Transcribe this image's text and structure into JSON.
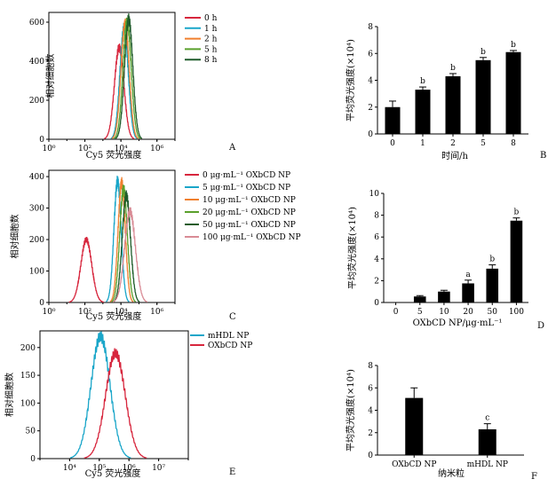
{
  "chart_data": [
    {
      "panel": "A",
      "type": "line",
      "xlabel": "Cy5 荧光强度",
      "ylabel": "相对细胞数",
      "x_scale": "log",
      "xlim": [
        1,
        10000000
      ],
      "ylim": [
        0,
        650
      ],
      "x_ticks": [
        1,
        100,
        10000,
        1000000
      ],
      "y_ticks": [
        0,
        200,
        400,
        600
      ],
      "legend_position": "right",
      "series": [
        {
          "name": "0 h",
          "color": "#d7263d",
          "peak_x": 8000,
          "peak_y": 470,
          "width": 0.26
        },
        {
          "name": "1 h",
          "color": "#1aa6c9",
          "peak_x": 15000,
          "peak_y": 570,
          "width": 0.23
        },
        {
          "name": "2 h",
          "color": "#f07f2e",
          "peak_x": 17000,
          "peak_y": 590,
          "width": 0.23
        },
        {
          "name": "5 h",
          "color": "#5aa02c",
          "peak_x": 22000,
          "peak_y": 600,
          "width": 0.23
        },
        {
          "name": "8 h",
          "color": "#1f5c2b",
          "peak_x": 27000,
          "peak_y": 615,
          "width": 0.23
        }
      ]
    },
    {
      "panel": "B",
      "type": "bar",
      "xlabel": "时间/h",
      "ylabel": "平均荧光强度(×10⁴)",
      "categories": [
        "0",
        "1",
        "2",
        "5",
        "8"
      ],
      "values": [
        2.0,
        3.3,
        4.3,
        5.5,
        6.1
      ],
      "errors": [
        0.45,
        0.2,
        0.2,
        0.2,
        0.12
      ],
      "significance": [
        "",
        "b",
        "b",
        "b",
        "b"
      ],
      "ylim": [
        0,
        8
      ],
      "y_ticks": [
        0,
        2,
        4,
        6,
        8
      ]
    },
    {
      "panel": "C",
      "type": "line",
      "xlabel": "Cy5 荧光强度",
      "ylabel": "相对细胞数",
      "x_scale": "log",
      "xlim": [
        1,
        10000000
      ],
      "ylim": [
        0,
        420
      ],
      "x_ticks": [
        1,
        100,
        10000,
        1000000
      ],
      "y_ticks": [
        0,
        100,
        200,
        300,
        400
      ],
      "legend_position": "right",
      "series": [
        {
          "name": "0 μg·mL⁻¹  OXbCD NP",
          "color": "#d7263d",
          "peak_x": 120,
          "peak_y": 200,
          "width": 0.3
        },
        {
          "name": "5 μg·mL⁻¹  OXbCD NP",
          "color": "#1aa6c9",
          "peak_x": 6500,
          "peak_y": 385,
          "width": 0.2
        },
        {
          "name": "10 μg·mL⁻¹  OXbCD NP",
          "color": "#f07f2e",
          "peak_x": 11000,
          "peak_y": 380,
          "width": 0.2
        },
        {
          "name": "20 μg·mL⁻¹  OXbCD NP",
          "color": "#5aa02c",
          "peak_x": 14000,
          "peak_y": 360,
          "width": 0.21
        },
        {
          "name": "50 μg·mL⁻¹  OXbCD NP",
          "color": "#1f5c2b",
          "peak_x": 20000,
          "peak_y": 340,
          "width": 0.23
        },
        {
          "name": "100 μg·mL⁻¹  OXbCD NP",
          "color": "#d98b95",
          "peak_x": 32000,
          "peak_y": 290,
          "width": 0.3
        }
      ]
    },
    {
      "panel": "D",
      "type": "bar",
      "xlabel": "OXbCD NP/μg·mL⁻¹",
      "ylabel": "平均荧光强度(×10⁴)",
      "categories": [
        "0",
        "5",
        "10",
        "20",
        "50",
        "100"
      ],
      "values": [
        0,
        0.55,
        1.0,
        1.75,
        3.1,
        7.5
      ],
      "errors": [
        0,
        0.08,
        0.12,
        0.3,
        0.35,
        0.25
      ],
      "significance": [
        "",
        "",
        "",
        "a",
        "b",
        "b"
      ],
      "ylim": [
        0,
        10
      ],
      "y_ticks": [
        0,
        2,
        4,
        6,
        8,
        10
      ]
    },
    {
      "panel": "E",
      "type": "line",
      "xlabel": "Cy5 荧光强度",
      "ylabel": "相对细胞数",
      "x_scale": "log",
      "xlim": [
        1000,
        100000000
      ],
      "ylim": [
        0,
        230
      ],
      "x_ticks": [
        10000,
        100000,
        1000000,
        10000000
      ],
      "y_ticks": [
        0,
        50,
        100,
        150,
        200
      ],
      "legend_position": "top-right",
      "series": [
        {
          "name": "mHDL NP",
          "color": "#1aa6c9",
          "peak_x": 110000,
          "peak_y": 220,
          "width": 0.32
        },
        {
          "name": "OXbCD NP",
          "color": "#d7263d",
          "peak_x": 350000,
          "peak_y": 190,
          "width": 0.33
        }
      ]
    },
    {
      "panel": "F",
      "type": "bar",
      "xlabel": "纳米粒",
      "ylabel": "平均荧光强度(×10⁴)",
      "categories": [
        "OXbCD NP",
        "mHDL NP"
      ],
      "values": [
        5.1,
        2.3
      ],
      "errors": [
        0.9,
        0.5
      ],
      "significance": [
        "",
        "c"
      ],
      "ylim": [
        0,
        8
      ],
      "y_ticks": [
        0,
        2,
        4,
        6,
        8
      ]
    }
  ],
  "panel_letters": [
    "A",
    "B",
    "C",
    "D",
    "E",
    "F"
  ]
}
